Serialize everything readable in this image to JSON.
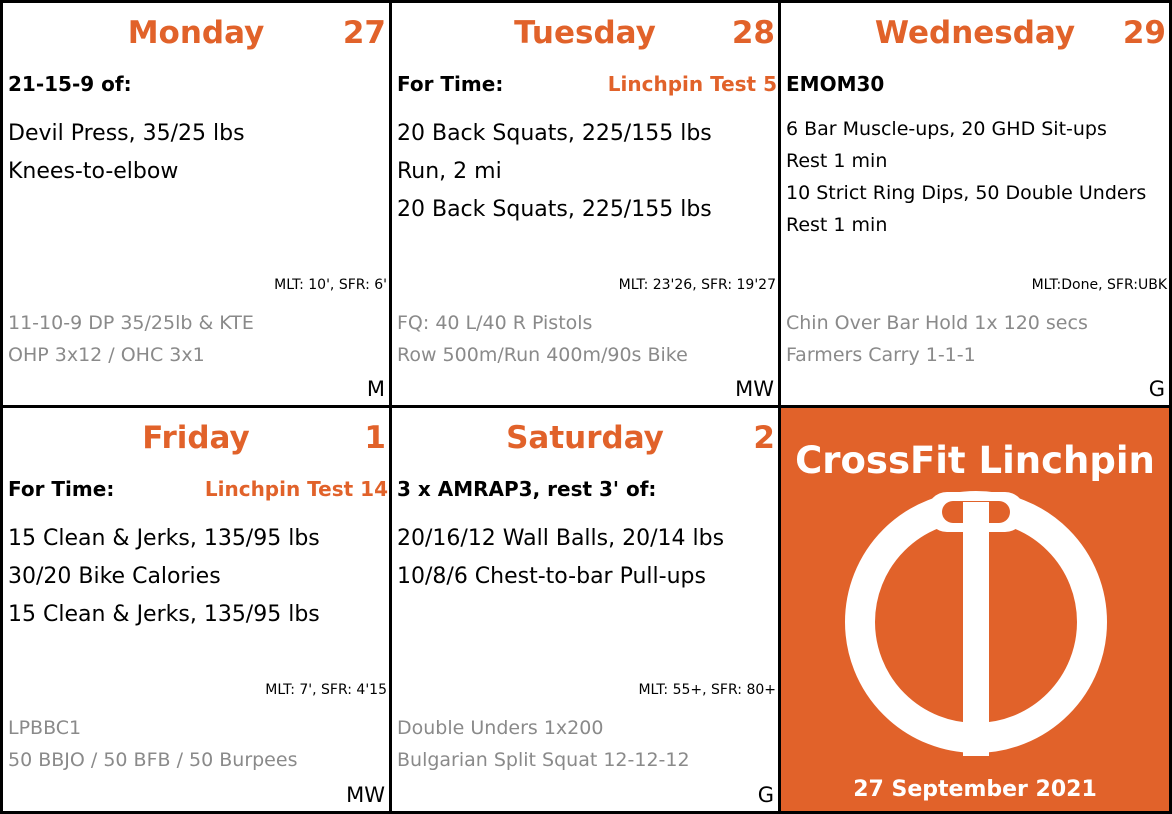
{
  "days": [
    {
      "name": "Monday",
      "number": "27",
      "workout_type": "21-15-9 of:",
      "tag": "",
      "movements": [
        "Devil Press, 35/25 lbs",
        "Knees-to-elbow"
      ],
      "scores": "MLT: 10', SFR: 6'",
      "extras": [
        "11-10-9 DP 35/25lb & KTE",
        "OHP 3x12 / OHC 3x1"
      ],
      "coach": "M"
    },
    {
      "name": "Tuesday",
      "number": "28",
      "workout_type": "For Time:",
      "tag": "Linchpin Test 5",
      "movements": [
        "20 Back Squats, 225/155 lbs",
        "Run, 2 mi",
        "20 Back Squats, 225/155 lbs"
      ],
      "scores": "MLT: 23'26, SFR: 19'27",
      "extras": [
        "FQ: 40 L/40 R Pistols",
        "Row 500m/Run 400m/90s Bike"
      ],
      "coach": "MW"
    },
    {
      "name": "Wednesday",
      "number": "29",
      "workout_type": "EMOM30",
      "tag": "",
      "movements": [
        "6 Bar Muscle-ups, 20 GHD Sit-ups",
        "Rest 1 min",
        "10 Strict Ring Dips, 50 Double Unders",
        "Rest 1 min"
      ],
      "scores": "MLT:Done, SFR:UBK",
      "extras": [
        "Chin Over Bar Hold 1x 120 secs",
        "Farmers Carry 1-1-1"
      ],
      "coach": "G"
    },
    {
      "name": "Friday",
      "number": "1",
      "workout_type": "For Time:",
      "tag": "Linchpin Test 14",
      "movements": [
        "15 Clean & Jerks, 135/95 lbs",
        "30/20 Bike Calories",
        "15 Clean & Jerks, 135/95 lbs"
      ],
      "scores": "MLT: 7', SFR: 4'15",
      "extras": [
        "LPBBC1",
        "50 BBJO / 50 BFB / 50 Burpees"
      ],
      "coach": "MW"
    },
    {
      "name": "Saturday",
      "number": "2",
      "workout_type": "3 x AMRAP3, rest 3' of:",
      "tag": "",
      "movements": [
        "20/16/12 Wall Balls, 20/14 lbs",
        "10/8/6 Chest-to-bar Pull-ups"
      ],
      "scores": "MLT: 55+, SFR: 80+",
      "extras": [
        "Double Unders 1x200",
        "Bulgarian Split Squat 12-12-12"
      ],
      "coach": "G"
    }
  ],
  "brand": {
    "name": "CrossFit Linchpin",
    "date": "27 September 2021",
    "logo_icon": "linchpin-logo-icon",
    "accent_color": "#e1622a"
  }
}
